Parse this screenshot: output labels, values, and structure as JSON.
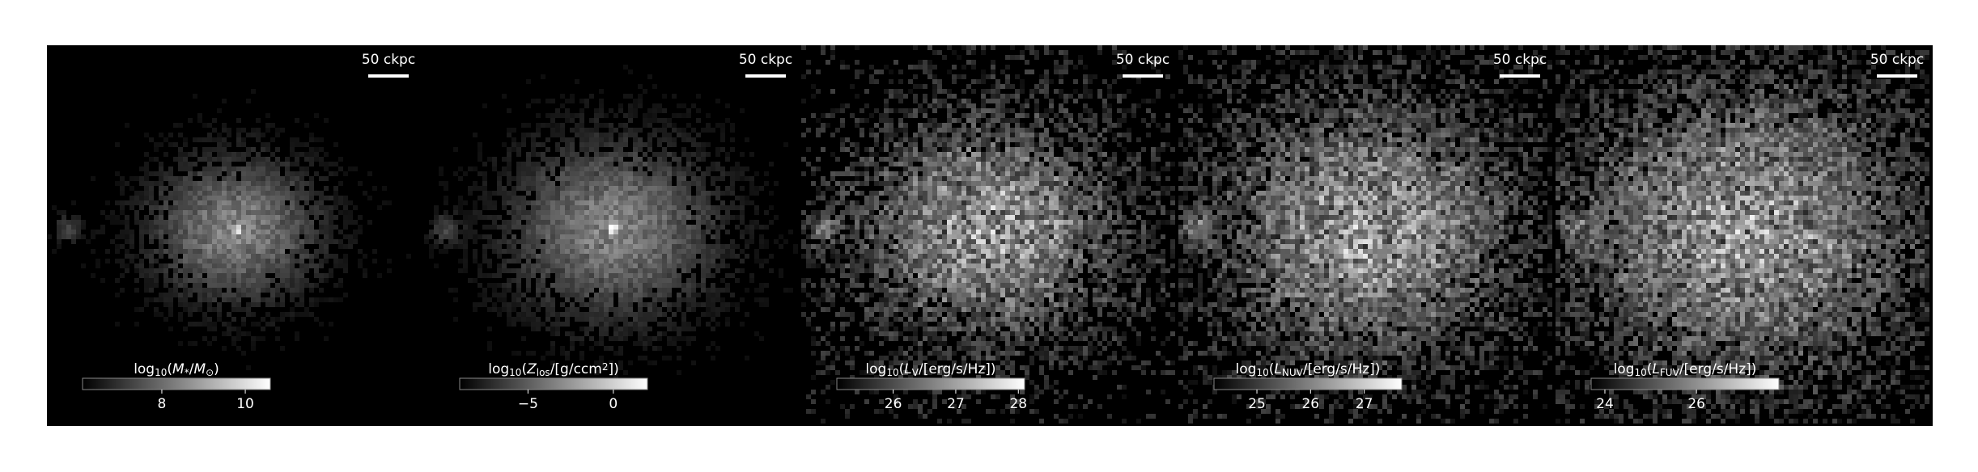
{
  "figure": {
    "panels": [
      {
        "scale_bar_label": "50 ckpc",
        "colorbar": {
          "label": [
            {
              "text": "log"
            },
            {
              "text": "10",
              "shift": "sub"
            },
            {
              "text": "("
            },
            {
              "text": "M",
              "italic": true
            },
            {
              "text": "*",
              "shift": "sub"
            },
            {
              "text": "/"
            },
            {
              "text": "M",
              "italic": true
            },
            {
              "text": "⊙",
              "shift": "sub"
            },
            {
              "text": ")"
            }
          ],
          "lim": [
            6.1,
            10.6
          ],
          "ticks": [
            8,
            10
          ]
        }
      },
      {
        "scale_bar_label": "50 ckpc",
        "colorbar": {
          "label": [
            {
              "text": "log"
            },
            {
              "text": "10",
              "shift": "sub"
            },
            {
              "text": "("
            },
            {
              "text": "Z",
              "italic": true
            },
            {
              "text": "los",
              "shift": "sub"
            },
            {
              "text": "/[g/ccm"
            },
            {
              "text": "2",
              "shift": "sup"
            },
            {
              "text": "])"
            }
          ],
          "lim": [
            -9,
            2
          ],
          "ticks": [
            {
              "value": -5,
              "label": "−5"
            },
            0
          ]
        }
      },
      {
        "scale_bar_label": "50 ckpc",
        "colorbar": {
          "label": [
            {
              "text": "log"
            },
            {
              "text": "10",
              "shift": "sub"
            },
            {
              "text": "("
            },
            {
              "text": "L",
              "italic": true
            },
            {
              "text": "V",
              "shift": "sub"
            },
            {
              "text": "/[erg/s/Hz])"
            }
          ],
          "lim": [
            25.1,
            28.1
          ],
          "ticks": [
            26,
            27,
            28
          ]
        }
      },
      {
        "scale_bar_label": "50 ckpc",
        "colorbar": {
          "label": [
            {
              "text": "log"
            },
            {
              "text": "10",
              "shift": "sub"
            },
            {
              "text": "("
            },
            {
              "text": "L",
              "italic": true
            },
            {
              "text": "NUV",
              "shift": "sub"
            },
            {
              "text": "/[erg/s/Hz])"
            }
          ],
          "lim": [
            24.2,
            27.7
          ],
          "ticks": [
            25,
            26,
            27
          ]
        }
      },
      {
        "scale_bar_label": "50 ckpc",
        "colorbar": {
          "label": [
            {
              "text": "log"
            },
            {
              "text": "10",
              "shift": "sub"
            },
            {
              "text": "("
            },
            {
              "text": "L",
              "italic": true
            },
            {
              "text": "FUV",
              "shift": "sub"
            },
            {
              "text": "/[erg/s/Hz])"
            }
          ],
          "lim": [
            23.7,
            27.8
          ],
          "ticks": [
            24,
            26
          ]
        }
      }
    ]
  }
}
